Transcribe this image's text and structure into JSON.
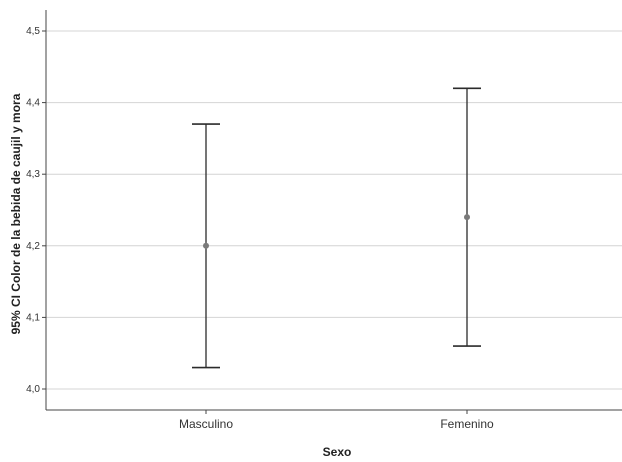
{
  "chart_data": {
    "type": "errorbar",
    "categories": [
      "Masculino",
      "Femenino"
    ],
    "series": [
      {
        "mean": [
          4.2,
          4.24
        ],
        "lower": [
          4.03,
          4.06
        ],
        "upper": [
          4.37,
          4.42
        ]
      }
    ],
    "xlabel": "Sexo",
    "ylabel": "95% CI Color de la bebida de caujil y mora",
    "ylim": [
      4.0,
      4.5
    ],
    "yticks": [
      4.0,
      4.1,
      4.2,
      4.3,
      4.4,
      4.5
    ],
    "ytick_labels": [
      "4,0",
      "4,1",
      "4,2",
      "4,3",
      "4,4",
      "4,5"
    ],
    "grid": true,
    "colors": {
      "grid": "#d4d4d4",
      "axis": "#444444",
      "errorbar": "#2b2b2b",
      "marker": "#7a7a7a"
    }
  }
}
